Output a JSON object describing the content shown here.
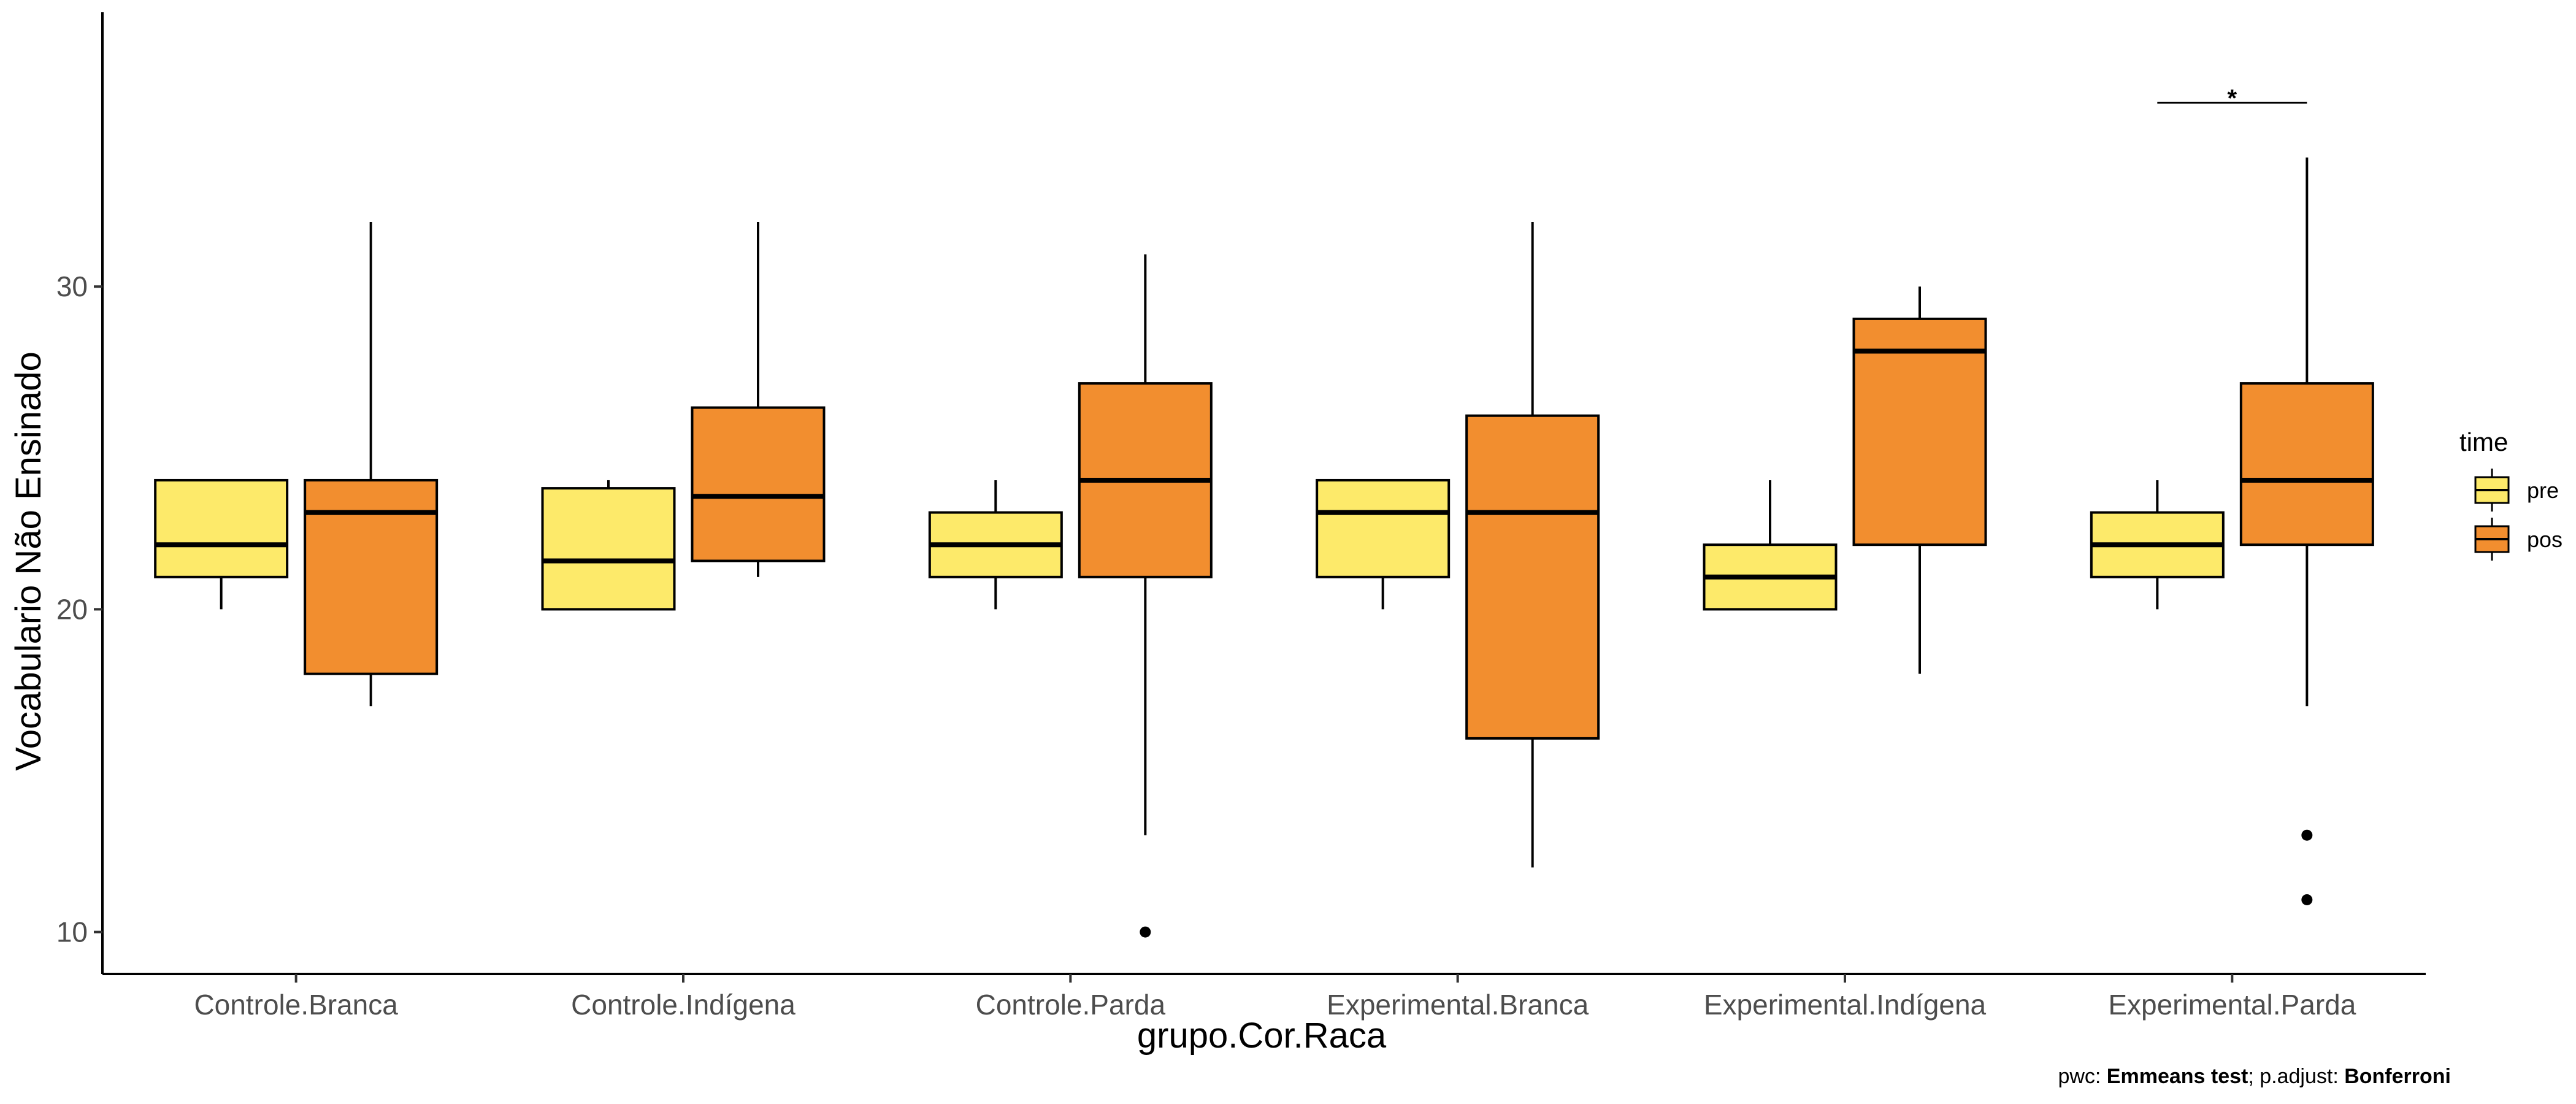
{
  "chart_data": {
    "type": "boxplot",
    "xlabel": "grupo.Cor.Raca",
    "ylabel": "Vocabulario Não Ensinado",
    "ylim": [
      8.7,
      38.5
    ],
    "yticks": [
      10,
      20,
      30
    ],
    "grid": false,
    "legend": {
      "title": "time",
      "position": "right",
      "entries": [
        {
          "name": "pre",
          "color": "#FDEA6A"
        },
        {
          "name": "pos",
          "color": "#F28E2F"
        }
      ]
    },
    "categories": [
      "Controle.Branca",
      "Controle.Indígena",
      "Controle.Parda",
      "Experimental.Branca",
      "Experimental.Indígena",
      "Experimental.Parda"
    ],
    "series": [
      {
        "name": "pre",
        "color": "#FDEA6A",
        "boxes": [
          {
            "whisker_low": 20,
            "q1": 21,
            "median": 22,
            "q3": 24,
            "whisker_high": 24,
            "outliers": []
          },
          {
            "whisker_low": 20,
            "q1": 20,
            "median": 21.5,
            "q3": 23.75,
            "whisker_high": 24,
            "outliers": []
          },
          {
            "whisker_low": 20,
            "q1": 21,
            "median": 22,
            "q3": 23,
            "whisker_high": 24,
            "outliers": []
          },
          {
            "whisker_low": 20,
            "q1": 21,
            "median": 23,
            "q3": 24,
            "whisker_high": 24,
            "outliers": []
          },
          {
            "whisker_low": 20,
            "q1": 20,
            "median": 21,
            "q3": 22,
            "whisker_high": 24,
            "outliers": []
          },
          {
            "whisker_low": 20,
            "q1": 21,
            "median": 22,
            "q3": 23,
            "whisker_high": 24,
            "outliers": []
          }
        ]
      },
      {
        "name": "pos",
        "color": "#F28E2F",
        "boxes": [
          {
            "whisker_low": 17,
            "q1": 18,
            "median": 23,
            "q3": 24,
            "whisker_high": 32,
            "outliers": []
          },
          {
            "whisker_low": 21,
            "q1": 21.5,
            "median": 23.5,
            "q3": 26.25,
            "whisker_high": 32,
            "outliers": []
          },
          {
            "whisker_low": 13,
            "q1": 21,
            "median": 24,
            "q3": 27,
            "whisker_high": 31,
            "outliers": [
              10
            ]
          },
          {
            "whisker_low": 12,
            "q1": 16,
            "median": 23,
            "q3": 26,
            "whisker_high": 32,
            "outliers": []
          },
          {
            "whisker_low": 18,
            "q1": 22,
            "median": 28,
            "q3": 29,
            "whisker_high": 30,
            "outliers": []
          },
          {
            "whisker_low": 17,
            "q1": 22,
            "median": 24,
            "q3": 27,
            "whisker_high": 34,
            "outliers": [
              13,
              11
            ]
          }
        ]
      }
    ],
    "annotations": [
      {
        "category": "Experimental.Parda",
        "label": "*",
        "y": 35.7
      }
    ]
  },
  "caption": {
    "prefix": "pwc: ",
    "method": "Emmeans test",
    "mid": "; p.adjust: ",
    "adjust": "Bonferroni"
  }
}
